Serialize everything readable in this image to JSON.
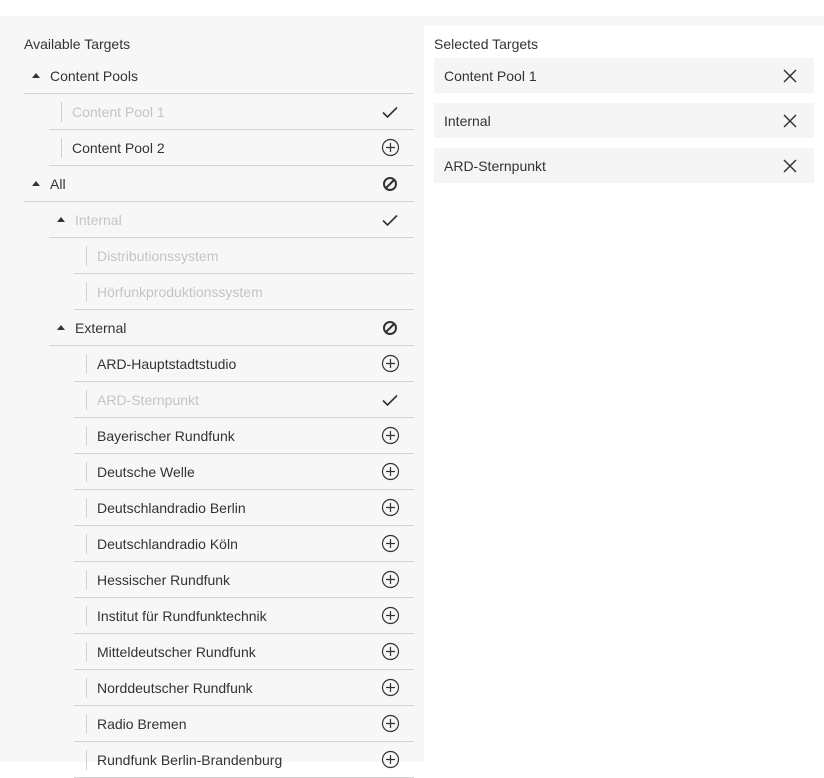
{
  "available": {
    "heading": "Available Targets",
    "rows": [
      {
        "label": "Content Pools",
        "level": 0,
        "type": "group",
        "icon": "none",
        "disabled": false
      },
      {
        "label": "Content Pool 1",
        "level": 1,
        "type": "leaf",
        "icon": "check-icon",
        "disabled": true
      },
      {
        "label": "Content Pool 2",
        "level": 1,
        "type": "leaf",
        "icon": "add-circle-icon",
        "disabled": false
      },
      {
        "label": "All",
        "level": 0,
        "type": "group",
        "icon": "blocked-icon",
        "disabled": false
      },
      {
        "label": "Internal",
        "level": 1,
        "type": "group",
        "icon": "check-icon",
        "disabled": true
      },
      {
        "label": "Distributionssystem",
        "level": 2,
        "type": "leaf",
        "icon": "none",
        "disabled": true
      },
      {
        "label": "Hörfunkproduktionssystem",
        "level": 2,
        "type": "leaf",
        "icon": "none",
        "disabled": true
      },
      {
        "label": "External",
        "level": 1,
        "type": "group",
        "icon": "blocked-icon",
        "disabled": false
      },
      {
        "label": "ARD-Hauptstadtstudio",
        "level": 2,
        "type": "leaf",
        "icon": "add-circle-icon",
        "disabled": false
      },
      {
        "label": "ARD-Sternpunkt",
        "level": 2,
        "type": "leaf",
        "icon": "check-icon",
        "disabled": true
      },
      {
        "label": "Bayerischer Rundfunk",
        "level": 2,
        "type": "leaf",
        "icon": "add-circle-icon",
        "disabled": false
      },
      {
        "label": "Deutsche Welle",
        "level": 2,
        "type": "leaf",
        "icon": "add-circle-icon",
        "disabled": false
      },
      {
        "label": "Deutschlandradio Berlin",
        "level": 2,
        "type": "leaf",
        "icon": "add-circle-icon",
        "disabled": false
      },
      {
        "label": "Deutschlandradio Köln",
        "level": 2,
        "type": "leaf",
        "icon": "add-circle-icon",
        "disabled": false
      },
      {
        "label": "Hessischer Rundfunk",
        "level": 2,
        "type": "leaf",
        "icon": "add-circle-icon",
        "disabled": false
      },
      {
        "label": "Institut für Rundfunktechnik",
        "level": 2,
        "type": "leaf",
        "icon": "add-circle-icon",
        "disabled": false
      },
      {
        "label": "Mitteldeutscher Rundfunk",
        "level": 2,
        "type": "leaf",
        "icon": "add-circle-icon",
        "disabled": false
      },
      {
        "label": "Norddeutscher Rundfunk",
        "level": 2,
        "type": "leaf",
        "icon": "add-circle-icon",
        "disabled": false
      },
      {
        "label": "Radio Bremen",
        "level": 2,
        "type": "leaf",
        "icon": "add-circle-icon",
        "disabled": false
      },
      {
        "label": "Rundfunk Berlin-Brandenburg",
        "level": 2,
        "type": "leaf",
        "icon": "add-circle-icon",
        "disabled": false
      }
    ]
  },
  "selected": {
    "heading": "Selected Targets",
    "items": [
      {
        "label": "Content Pool 1",
        "icon": "close-icon"
      },
      {
        "label": "Internal",
        "icon": "close-icon"
      },
      {
        "label": "ARD-Sternpunkt",
        "icon": "close-icon"
      }
    ]
  }
}
